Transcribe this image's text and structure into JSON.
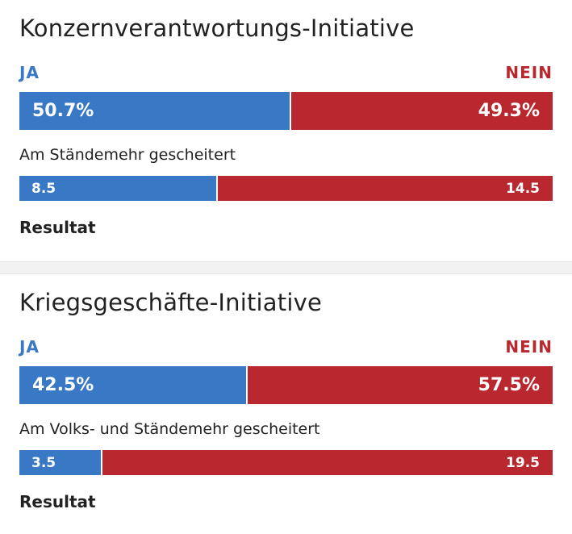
{
  "colors": {
    "ja": "#3878c4",
    "nein": "#b9282e"
  },
  "labels": {
    "ja": "JA",
    "nein": "NEIN",
    "result": "Resultat"
  },
  "votes": [
    {
      "title": "Konzernverantwortungs-Initiative",
      "ja_percent": 50.7,
      "nein_percent": 49.3,
      "ja_text": "50.7%",
      "nein_text": "49.3%",
      "status": "Am Ständemehr gescheitert",
      "stand_ja": 8.5,
      "stand_nein": 14.5,
      "stand_ja_text": "8.5",
      "stand_nein_text": "14.5"
    },
    {
      "title": "Kriegsgeschäfte-Initiative",
      "ja_percent": 42.5,
      "nein_percent": 57.5,
      "ja_text": "42.5%",
      "nein_text": "57.5%",
      "status": "Am Volks- und Ständemehr gescheitert",
      "stand_ja": 3.5,
      "stand_nein": 19.5,
      "stand_ja_text": "3.5",
      "stand_nein_text": "19.5"
    }
  ]
}
